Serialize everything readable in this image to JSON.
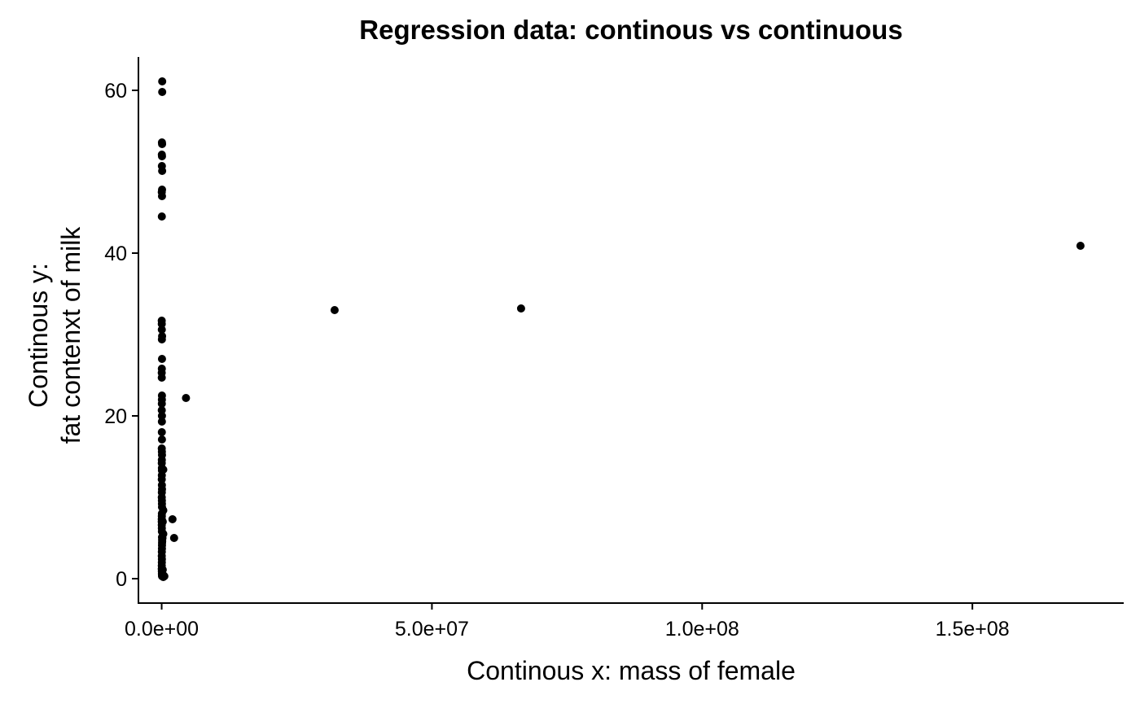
{
  "chart_data": {
    "type": "scatter",
    "title": "Regression data: continous vs continuous",
    "xlabel": "Continous x: mass of female",
    "ylabel_lines": [
      "Continous y:",
      "fat contenxt of milk"
    ],
    "xlim": [
      -4300000,
      178000000
    ],
    "ylim": [
      -3.0,
      64.1
    ],
    "x_ticks": [
      0,
      50000000,
      100000000,
      150000000
    ],
    "x_tick_labels": [
      "0.0e+00",
      "5.0e+07",
      "1.0e+08",
      "1.5e+08"
    ],
    "y_ticks": [
      0,
      20,
      40,
      60
    ],
    "y_tick_labels": [
      "0",
      "20",
      "40",
      "60"
    ],
    "grid": false,
    "legend": "none",
    "point_color": "#000000",
    "series": [
      {
        "x": [
          100000,
          100000,
          50000,
          80000,
          30000,
          60000,
          40000,
          90000,
          70000,
          20000,
          60000,
          30000,
          10000,
          20000,
          25000,
          80000,
          40000,
          60000,
          30000,
          10000,
          20000,
          50000,
          40000,
          30000,
          20000,
          50000,
          40000,
          30000,
          50000,
          20000,
          40000,
          60000,
          30000,
          20000,
          40000,
          50000,
          30000,
          20000,
          40000,
          60000,
          30000,
          20000,
          40000,
          50000,
          60000,
          300000,
          40000,
          30000,
          20000,
          10000,
          20000,
          30000,
          40000,
          300000,
          60000,
          80000,
          70000,
          60000,
          50000,
          30000,
          20000,
          40000,
          30000,
          20000,
          10000,
          30000,
          40000,
          60000,
          80000,
          100000,
          150000,
          200000,
          300000,
          2000000,
          500000,
          300000,
          250000,
          200000,
          2300000,
          4500000,
          32000000,
          66500000,
          170000000
        ],
        "y": [
          61.1,
          59.8,
          53.6,
          53.4,
          52.1,
          51.9,
          50.7,
          50.1,
          47.8,
          47.5,
          47.0,
          44.5,
          31.7,
          31.3,
          30.6,
          29.8,
          29.4,
          27.0,
          25.8,
          25.3,
          24.7,
          22.5,
          22.0,
          21.5,
          20.7,
          20.0,
          19.3,
          18.0,
          17.1,
          16.0,
          15.6,
          15.2,
          14.6,
          14.2,
          13.6,
          13.3,
          12.7,
          12.2,
          11.5,
          11.0,
          10.6,
          10.0,
          9.6,
          9.2,
          8.8,
          8.4,
          8.0,
          7.7,
          7.3,
          7.0,
          6.6,
          6.2,
          5.8,
          5.5,
          5.1,
          4.8,
          4.4,
          4.1,
          3.7,
          3.3,
          2.8,
          2.4,
          2.0,
          1.6,
          1.2,
          0.9,
          0.6,
          0.4,
          0.3,
          4.6,
          5.0,
          7.0,
          13.4,
          7.3,
          0.3,
          0.2,
          0.5,
          1.1,
          5.0,
          22.2,
          33.0,
          33.2,
          40.9
        ]
      }
    ]
  }
}
